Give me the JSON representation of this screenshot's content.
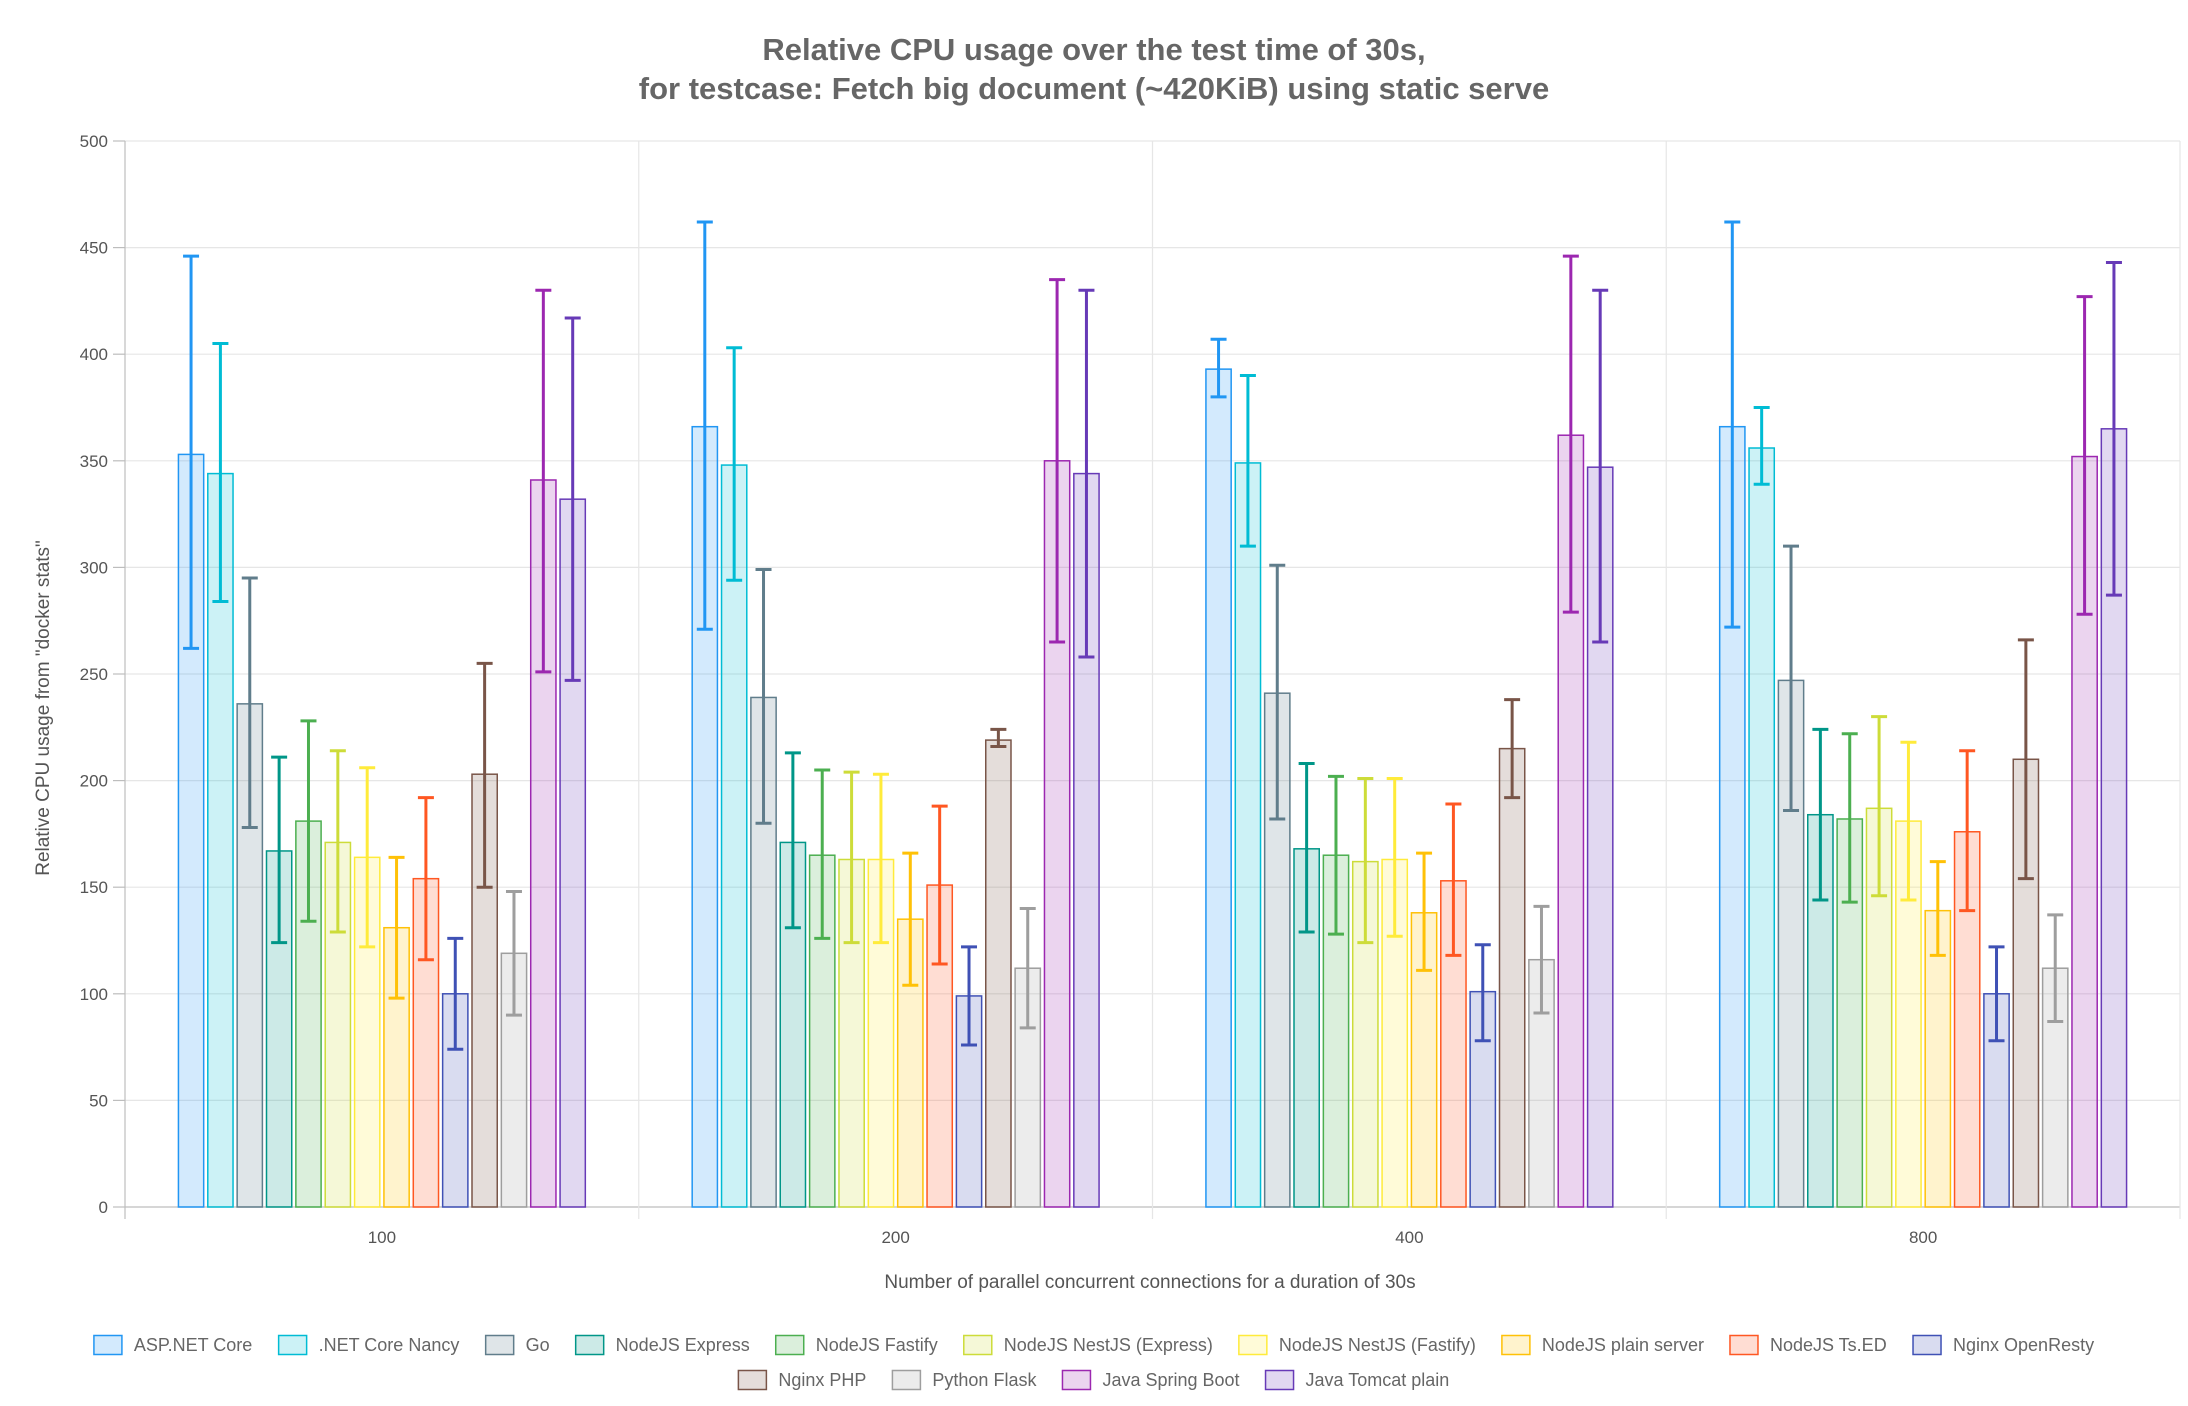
{
  "chart_data": {
    "type": "bar",
    "title": [
      "Relative CPU usage over the test time of 30s,",
      "for testcase: Fetch big document (~420KiB) using static serve"
    ],
    "xlabel": "Number of parallel concurrent connections for a duration of 30s",
    "ylabel": "Relative CPU usage from \"docker stats\"",
    "ylim": [
      0,
      500
    ],
    "yticks": [
      0,
      50,
      100,
      150,
      200,
      250,
      300,
      350,
      400,
      450,
      500
    ],
    "grid": true,
    "legend_position": "bottom",
    "error_bars": true,
    "categories": [
      "100",
      "200",
      "400",
      "800"
    ],
    "series": [
      {
        "name": "ASP.NET Core",
        "color": "#2196f3",
        "values": [
          353,
          366,
          393,
          366
        ],
        "err_low": [
          262,
          271,
          380,
          272
        ],
        "err_high": [
          446,
          462,
          407,
          462
        ]
      },
      {
        "name": ".NET Core Nancy",
        "color": "#00bcd4",
        "values": [
          344,
          348,
          349,
          356
        ],
        "err_low": [
          284,
          294,
          310,
          339
        ],
        "err_high": [
          405,
          403,
          390,
          375
        ]
      },
      {
        "name": "Go",
        "color": "#607d8b",
        "values": [
          236,
          239,
          241,
          247
        ],
        "err_low": [
          178,
          180,
          182,
          186
        ],
        "err_high": [
          295,
          299,
          301,
          310
        ]
      },
      {
        "name": "NodeJS Express",
        "color": "#009688",
        "values": [
          167,
          171,
          168,
          184
        ],
        "err_low": [
          124,
          131,
          129,
          144
        ],
        "err_high": [
          211,
          213,
          208,
          224
        ]
      },
      {
        "name": "NodeJS Fastify",
        "color": "#4caf50",
        "values": [
          181,
          165,
          165,
          182
        ],
        "err_low": [
          134,
          126,
          128,
          143
        ],
        "err_high": [
          228,
          205,
          202,
          222
        ]
      },
      {
        "name": "NodeJS NestJS (Express)",
        "color": "#cddc39",
        "values": [
          171,
          163,
          162,
          187
        ],
        "err_low": [
          129,
          124,
          124,
          146
        ],
        "err_high": [
          214,
          204,
          201,
          230
        ]
      },
      {
        "name": "NodeJS NestJS (Fastify)",
        "color": "#ffeb3b",
        "values": [
          164,
          163,
          163,
          181
        ],
        "err_low": [
          122,
          124,
          127,
          144
        ],
        "err_high": [
          206,
          203,
          201,
          218
        ]
      },
      {
        "name": "NodeJS plain server",
        "color": "#ffc107",
        "values": [
          131,
          135,
          138,
          139
        ],
        "err_low": [
          98,
          104,
          111,
          118
        ],
        "err_high": [
          164,
          166,
          166,
          162
        ]
      },
      {
        "name": "NodeJS Ts.ED",
        "color": "#ff5722",
        "values": [
          154,
          151,
          153,
          176
        ],
        "err_low": [
          116,
          114,
          118,
          139
        ],
        "err_high": [
          192,
          188,
          189,
          214
        ]
      },
      {
        "name": "Nginx OpenResty",
        "color": "#3f51b5",
        "values": [
          100,
          99,
          101,
          100
        ],
        "err_low": [
          74,
          76,
          78,
          78
        ],
        "err_high": [
          126,
          122,
          123,
          122
        ]
      },
      {
        "name": "Nginx PHP",
        "color": "#795548",
        "values": [
          203,
          219,
          215,
          210
        ],
        "err_low": [
          150,
          216,
          192,
          154
        ],
        "err_high": [
          255,
          224,
          238,
          266
        ]
      },
      {
        "name": "Python Flask",
        "color": "#9e9e9e",
        "values": [
          119,
          112,
          116,
          112
        ],
        "err_low": [
          90,
          84,
          91,
          87
        ],
        "err_high": [
          148,
          140,
          141,
          137
        ]
      },
      {
        "name": "Java Spring Boot",
        "color": "#9c27b0",
        "values": [
          341,
          350,
          362,
          352
        ],
        "err_low": [
          251,
          265,
          279,
          278
        ],
        "err_high": [
          430,
          435,
          446,
          427
        ]
      },
      {
        "name": "Java Tomcat plain",
        "color": "#673ab7",
        "values": [
          332,
          344,
          347,
          365
        ],
        "err_low": [
          247,
          258,
          265,
          287
        ],
        "err_high": [
          417,
          430,
          430,
          443
        ]
      }
    ]
  }
}
